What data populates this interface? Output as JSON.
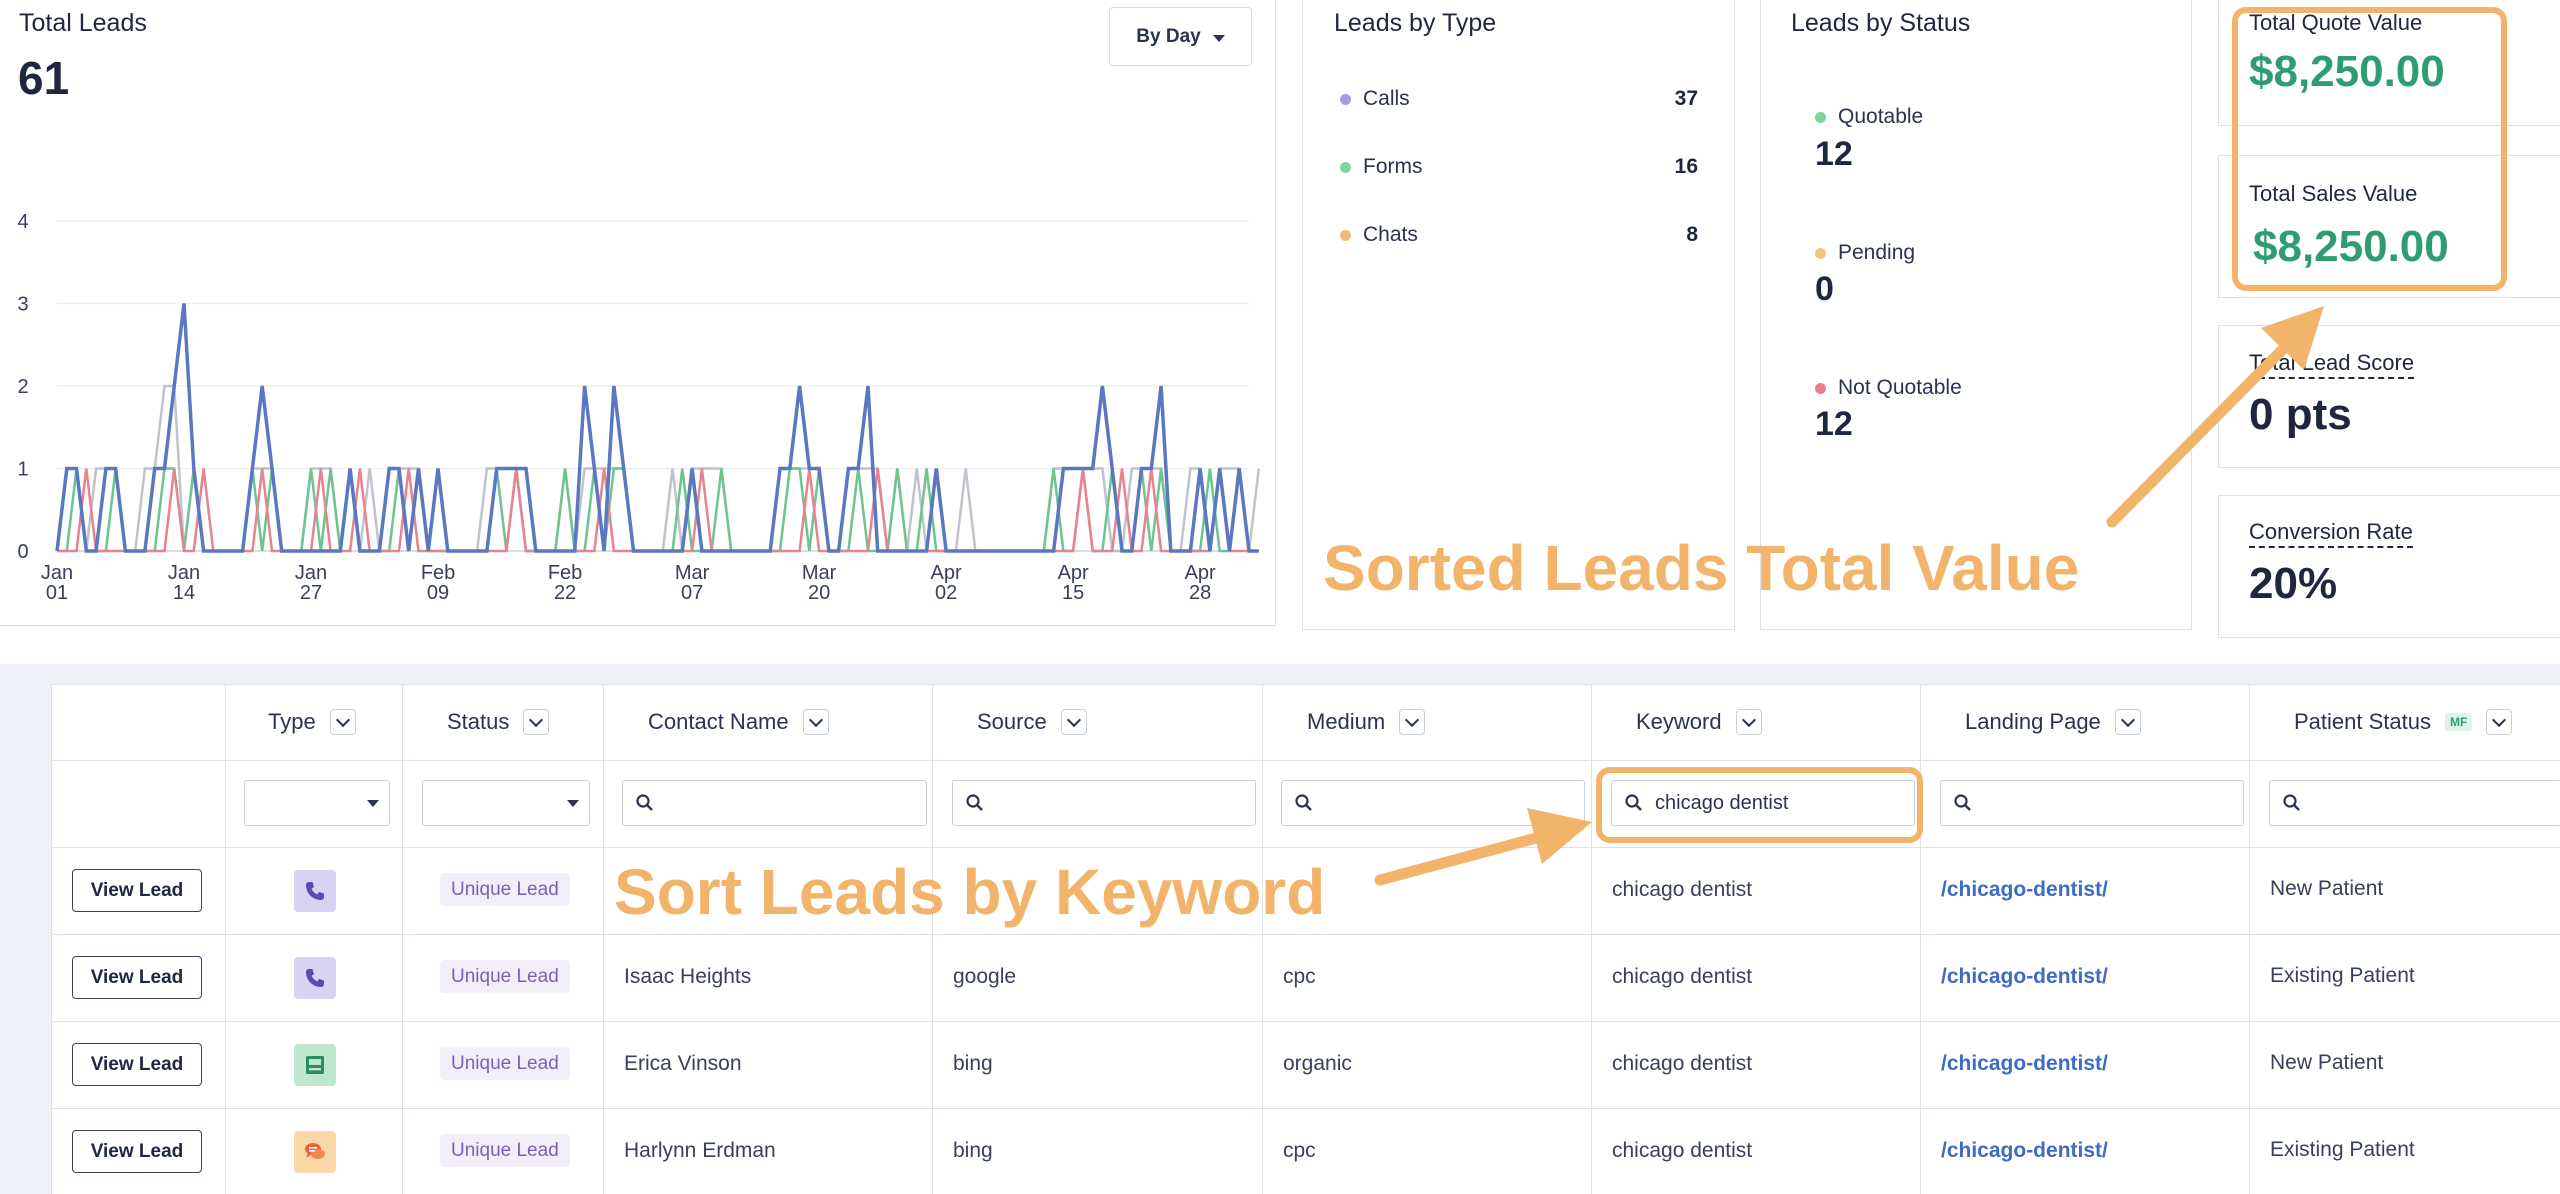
{
  "total_leads": {
    "title": "Total Leads",
    "value": "61",
    "range_button": "By Day"
  },
  "chart_data": {
    "type": "line",
    "title": "",
    "xlabel": "",
    "ylabel": "",
    "ylim": [
      0,
      4
    ],
    "yticks": [
      "0",
      "1",
      "2",
      "3",
      "4"
    ],
    "x_tick_labels": [
      [
        "Jan",
        "01"
      ],
      [
        "Jan",
        "14"
      ],
      [
        "Jan",
        "27"
      ],
      [
        "Feb",
        "09"
      ],
      [
        "Feb",
        "22"
      ],
      [
        "Mar",
        "07"
      ],
      [
        "Mar",
        "20"
      ],
      [
        "Apr",
        "02"
      ],
      [
        "Apr",
        "15"
      ],
      [
        "Apr",
        "28"
      ]
    ],
    "x_days": 123,
    "grid": true,
    "series": [
      {
        "color": "#5a78c0",
        "values": [
          0,
          1,
          1,
          0,
          0,
          1,
          1,
          0,
          0,
          0,
          1,
          1,
          2,
          3,
          1,
          0,
          0,
          0,
          0,
          0,
          1,
          2,
          1,
          0,
          0,
          0,
          0,
          0,
          0,
          0,
          1,
          0,
          0,
          0,
          1,
          1,
          0,
          1,
          0,
          1,
          0,
          0,
          0,
          0,
          0,
          1,
          1,
          1,
          1,
          0,
          0,
          0,
          0,
          0,
          2,
          1,
          0,
          2,
          1,
          0,
          0,
          0,
          0,
          0,
          0,
          1,
          0,
          0,
          0,
          0,
          0,
          0,
          0,
          0,
          1,
          1,
          2,
          1,
          1,
          0,
          0,
          1,
          1,
          2,
          0,
          0,
          0,
          0,
          0,
          0,
          1,
          0,
          0,
          0,
          0,
          0,
          0,
          0,
          0,
          0,
          0,
          0,
          0,
          1,
          1,
          1,
          1,
          2,
          1,
          0,
          0,
          1,
          1,
          2,
          0,
          0,
          0,
          1,
          0,
          1,
          0,
          1,
          0,
          0
        ]
      },
      {
        "color": "#6cc48e",
        "values": [
          0,
          0,
          1,
          0,
          0,
          0,
          1,
          0,
          0,
          0,
          0,
          1,
          1,
          0,
          1,
          0,
          0,
          0,
          0,
          0,
          1,
          0,
          1,
          0,
          0,
          0,
          1,
          0,
          1,
          0,
          1,
          0,
          0,
          0,
          0,
          1,
          0,
          1,
          0,
          0,
          0,
          0,
          0,
          0,
          0,
          1,
          0,
          1,
          0,
          0,
          0,
          0,
          1,
          0,
          0,
          1,
          0,
          1,
          1,
          0,
          0,
          0,
          0,
          0,
          1,
          0,
          0,
          0,
          1,
          0,
          0,
          0,
          0,
          0,
          0,
          1,
          1,
          0,
          1,
          0,
          0,
          0,
          1,
          0,
          0,
          0,
          1,
          0,
          0,
          1,
          0,
          0,
          0,
          0,
          0,
          0,
          0,
          0,
          0,
          0,
          0,
          0,
          1,
          0,
          0,
          1,
          0,
          0,
          1,
          0,
          0,
          1,
          0,
          1,
          0,
          0,
          0,
          0,
          1,
          0,
          0,
          1,
          0,
          0
        ]
      },
      {
        "color": "#e8828f",
        "values": [
          0,
          0,
          0,
          1,
          0,
          0,
          0,
          0,
          0,
          0,
          0,
          0,
          1,
          0,
          0,
          1,
          0,
          0,
          0,
          0,
          0,
          1,
          0,
          0,
          0,
          0,
          0,
          1,
          0,
          0,
          0,
          1,
          0,
          0,
          0,
          0,
          1,
          0,
          0,
          0,
          0,
          0,
          0,
          0,
          0,
          0,
          0,
          1,
          0,
          0,
          0,
          0,
          0,
          0,
          0,
          0,
          1,
          0,
          0,
          0,
          0,
          0,
          0,
          0,
          0,
          0,
          1,
          0,
          0,
          0,
          0,
          0,
          0,
          0,
          0,
          0,
          0,
          1,
          0,
          0,
          0,
          0,
          0,
          0,
          1,
          0,
          0,
          0,
          0,
          0,
          0,
          0,
          0,
          0,
          0,
          0,
          0,
          0,
          0,
          0,
          0,
          0,
          0,
          0,
          0,
          1,
          0,
          0,
          0,
          1,
          0,
          0,
          1,
          0,
          0,
          0,
          0,
          0,
          0,
          1,
          0,
          0,
          0,
          0
        ]
      },
      {
        "color": "#bfc3cc",
        "values": [
          0,
          1,
          1,
          0,
          1,
          1,
          1,
          0,
          0,
          1,
          1,
          2,
          2,
          0,
          1,
          0,
          0,
          0,
          0,
          0,
          1,
          1,
          1,
          0,
          0,
          0,
          1,
          1,
          1,
          0,
          1,
          0,
          1,
          0,
          1,
          1,
          1,
          1,
          0,
          1,
          0,
          0,
          0,
          0,
          1,
          1,
          1,
          1,
          0,
          0,
          0,
          0,
          1,
          0,
          1,
          1,
          1,
          1,
          1,
          0,
          0,
          0,
          0,
          1,
          0,
          1,
          1,
          1,
          1,
          0,
          0,
          0,
          0,
          0,
          1,
          1,
          1,
          1,
          1,
          0,
          0,
          1,
          1,
          1,
          1,
          0,
          1,
          0,
          1,
          0,
          0,
          0,
          0,
          1,
          0,
          0,
          0,
          0,
          0,
          0,
          0,
          0,
          1,
          1,
          1,
          1,
          1,
          1,
          0,
          0,
          1,
          1,
          1,
          1,
          0,
          0,
          1,
          1,
          0,
          1,
          1,
          1,
          0,
          1
        ]
      }
    ]
  },
  "leads_by_type": {
    "title": "Leads by Type",
    "items": [
      {
        "label": "Calls",
        "value": "37",
        "color": "#a89be6"
      },
      {
        "label": "Forms",
        "value": "16",
        "color": "#7fd3a0"
      },
      {
        "label": "Chats",
        "value": "8",
        "color": "#f7b77a"
      }
    ]
  },
  "leads_by_status": {
    "title": "Leads by Status",
    "items": [
      {
        "label": "Quotable",
        "value": "12",
        "color": "#7fd3a0"
      },
      {
        "label": "Pending",
        "value": "0",
        "color": "#f7c47a"
      },
      {
        "label": "Not Quotable",
        "value": "12",
        "color": "#ee7f8a"
      }
    ]
  },
  "metrics": {
    "quote": {
      "label": "Total Quote Value",
      "value": "$8,250.00"
    },
    "sales": {
      "label": "Total Sales Value",
      "value": "$8,250.00"
    },
    "score": {
      "label": "Total Lead Score",
      "value": "0 pts"
    },
    "conversion": {
      "label": "Conversion Rate",
      "value": "20%"
    }
  },
  "annotations": {
    "total_value": "Sorted Leads Total Value",
    "by_keyword": "Sort Leads by Keyword",
    "accent": "#f2b46b"
  },
  "table": {
    "headers": {
      "type": "Type",
      "status": "Status",
      "contact": "Contact Name",
      "source": "Source",
      "medium": "Medium",
      "keyword": "Keyword",
      "landing": "Landing Page",
      "patient": "Patient Status",
      "patient_badge": "MF"
    },
    "filters": {
      "keyword": "chicago dentist"
    },
    "view_label": "View Lead",
    "rows": [
      {
        "type_icon": "phone-icon",
        "status": "Unique Lead",
        "contact": "",
        "source": "",
        "medium": "",
        "keyword": "chicago dentist",
        "landing": "/chicago-dentist/",
        "patient": "New Patient"
      },
      {
        "type_icon": "phone-icon",
        "status": "Unique Lead",
        "contact": "Isaac Heights",
        "source": "google",
        "medium": "cpc",
        "keyword": "chicago dentist",
        "landing": "/chicago-dentist/",
        "patient": "Existing Patient"
      },
      {
        "type_icon": "form-icon",
        "status": "Unique Lead",
        "contact": "Erica Vinson",
        "source": "bing",
        "medium": "organic",
        "keyword": "chicago dentist",
        "landing": "/chicago-dentist/",
        "patient": "New Patient"
      },
      {
        "type_icon": "chat-icon",
        "status": "Unique Lead",
        "contact": "Harlynn Erdman",
        "source": "bing",
        "medium": "cpc",
        "keyword": "chicago dentist",
        "landing": "/chicago-dentist/",
        "patient": "Existing Patient"
      }
    ]
  }
}
